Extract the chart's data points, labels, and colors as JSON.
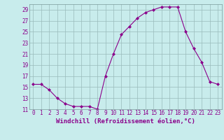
{
  "x": [
    0,
    1,
    2,
    3,
    4,
    5,
    6,
    7,
    8,
    9,
    10,
    11,
    12,
    13,
    14,
    15,
    16,
    17,
    18,
    19,
    20,
    21,
    22,
    23
  ],
  "y": [
    15.5,
    15.5,
    14.5,
    13,
    12,
    11.5,
    11.5,
    11.5,
    11,
    17,
    21,
    24.5,
    26,
    27.5,
    28.5,
    29,
    29.5,
    29.5,
    29.5,
    25,
    22,
    19.5,
    16,
    15.5
  ],
  "line_color": "#8B008B",
  "marker": "D",
  "marker_size": 2.0,
  "bg_color": "#c8ecec",
  "grid_color": "#99bbbb",
  "xlabel": "Windchill (Refroidissement éolien,°C)",
  "xlabel_color": "#8B008B",
  "tick_color": "#8B008B",
  "ylim": [
    11,
    30
  ],
  "xlim": [
    -0.5,
    23.5
  ],
  "yticks": [
    11,
    13,
    15,
    17,
    19,
    21,
    23,
    25,
    27,
    29
  ],
  "xticks": [
    0,
    1,
    2,
    3,
    4,
    5,
    6,
    7,
    8,
    9,
    10,
    11,
    12,
    13,
    14,
    15,
    16,
    17,
    18,
    19,
    20,
    21,
    22,
    23
  ],
  "tick_fontsize": 5.5,
  "xlabel_fontsize": 6.5
}
